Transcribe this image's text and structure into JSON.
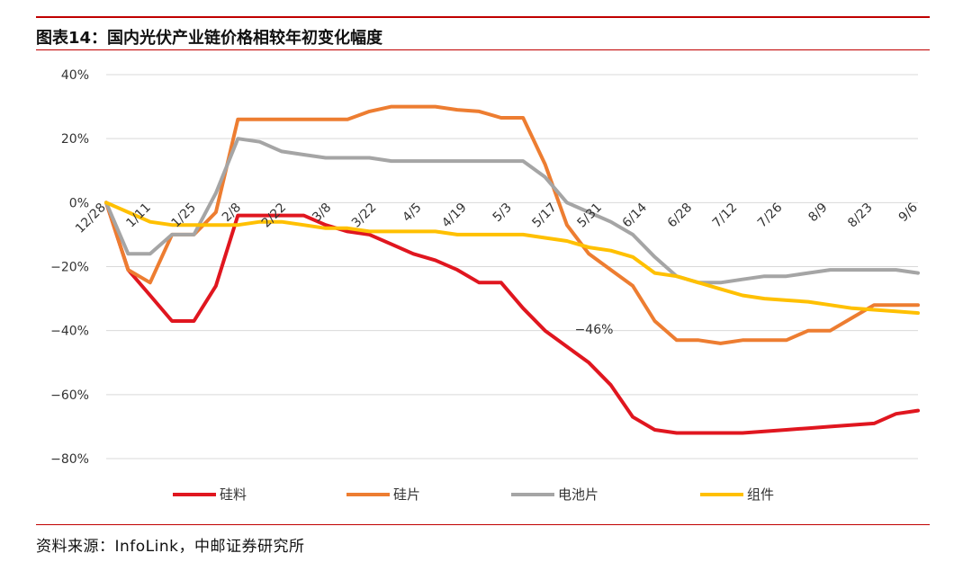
{
  "figure_title": "图表14：国内光伏产业链价格相较年初变化幅度",
  "source": "资料来源：InfoLink，中邮证券研究所",
  "chart_data": {
    "type": "line",
    "title": "图表14：国内光伏产业链价格相较年初变化幅度",
    "xlabel": "",
    "ylabel": "",
    "ylim": [
      -80,
      40
    ],
    "yticks": [
      40,
      20,
      0,
      -20,
      -40,
      -60,
      -80
    ],
    "ytick_labels": [
      "40%",
      "20%",
      "0%",
      "−20%",
      "−40%",
      "−60%",
      "−80%"
    ],
    "x_tick_labels": [
      "12/28",
      "1/11",
      "1/25",
      "2/8",
      "2/22",
      "3/8",
      "3/22",
      "4/5",
      "4/19",
      "5/3",
      "5/17",
      "5/31",
      "6/14",
      "6/28",
      "7/12",
      "7/26",
      "8/9",
      "8/23",
      "9/6"
    ],
    "grid": true,
    "legend_position": "bottom",
    "n_points": 38,
    "series": [
      {
        "name": "硅料",
        "color": "#e0161f",
        "values": [
          0,
          -21,
          -29,
          -37,
          -37,
          -26,
          -4,
          -4,
          -4,
          -4,
          -7,
          -9,
          -10,
          -13,
          -16,
          -18,
          -21,
          -25,
          -25,
          -33,
          -40,
          -45,
          -50,
          -57,
          -67,
          -71,
          -72,
          -72,
          -72,
          -72,
          -71.5,
          -71,
          -70.5,
          -70,
          -69.5,
          -69,
          -66,
          -65
        ]
      },
      {
        "name": "硅片",
        "color": "#ed7d31",
        "values": [
          0,
          -21,
          -25,
          -10,
          -10,
          -3,
          26,
          26,
          26,
          26,
          26,
          26,
          28.5,
          30,
          30,
          30,
          29,
          28.5,
          26.5,
          26.5,
          12,
          -7,
          -16,
          -21,
          -26,
          -37,
          -43,
          -43,
          -44,
          -43,
          -43,
          -43,
          -40,
          -40,
          -36,
          -32,
          -32,
          -32
        ]
      },
      {
        "name": "电池片",
        "color": "#a5a5a5",
        "values": [
          0,
          -16,
          -16,
          -10,
          -10,
          3,
          20,
          19,
          16,
          15,
          14,
          14,
          14,
          13,
          13,
          13,
          13,
          13,
          13,
          13,
          8,
          0,
          -3,
          -6,
          -10,
          -17,
          -23,
          -25,
          -25,
          -24,
          -23,
          -23,
          -22,
          -21,
          -21,
          -21,
          -21,
          -22
        ]
      },
      {
        "name": "组件",
        "color": "#ffc000",
        "values": [
          0,
          -3,
          -6,
          -7,
          -7,
          -7,
          -7,
          -6,
          -6,
          -7,
          -8,
          -8,
          -9,
          -9,
          -9,
          -9,
          -10,
          -10,
          -10,
          -10,
          -11,
          -12,
          -14,
          -15,
          -17,
          -22,
          -23,
          -25,
          -27,
          -29,
          -30,
          -30.5,
          -31,
          -32,
          -33,
          -33.5,
          -34,
          -34.5
        ]
      }
    ],
    "annotations": [
      {
        "text": "−46%"
      }
    ]
  }
}
